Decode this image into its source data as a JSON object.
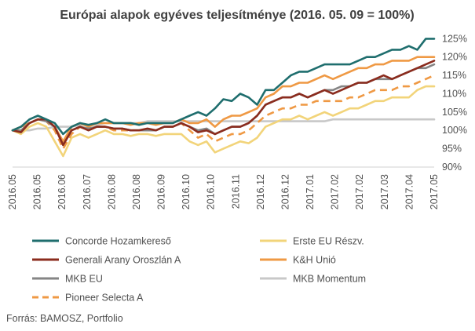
{
  "chart_data": {
    "type": "line",
    "title": "Európai alapok egyéves teljesítménye (2016. 05. 09 = 100%)",
    "source": "Forrás: BAMOSZ, Portfolio",
    "xlabel": "",
    "ylabel": "",
    "ylim": [
      90,
      127
    ],
    "y_ticks": [
      90,
      95,
      100,
      105,
      110,
      115,
      120,
      125
    ],
    "y_tick_labels": [
      "90%",
      "95%",
      "100%",
      "105%",
      "110%",
      "115%",
      "120%",
      "125%"
    ],
    "y_axis_position": "right",
    "x_tick_labels": [
      "2016.05",
      "2016.05",
      "2016.06",
      "2016.07",
      "2016.08",
      "2016.08",
      "2016.09",
      "2016.10",
      "2016.10",
      "2016.11",
      "2016.12",
      "2016.12",
      "2017.01",
      "2017.02",
      "2017.02",
      "2017.03",
      "2017.04",
      "2017.05"
    ],
    "grid": false,
    "legend_position": "bottom",
    "x": [
      0,
      2,
      4,
      6,
      8,
      10,
      12,
      14,
      16,
      18,
      20,
      22,
      24,
      26,
      28,
      30,
      32,
      34,
      36,
      38,
      40,
      42,
      44,
      46,
      48,
      50,
      52,
      54,
      56,
      58,
      60,
      62,
      64,
      66,
      68,
      70,
      72,
      74,
      76,
      78,
      80,
      82,
      84,
      86,
      88,
      90,
      92,
      94,
      96,
      98,
      100
    ],
    "series": [
      {
        "name": "Concorde Hozamkereső",
        "color": "#1f6e6e",
        "dash": false,
        "values": [
          100,
          101,
          103,
          104,
          103,
          102,
          99,
          101,
          102,
          101.5,
          102,
          103,
          102,
          102,
          102,
          101.5,
          102,
          102,
          102,
          102,
          103,
          104,
          105,
          104,
          106,
          108.5,
          108,
          110,
          109,
          107,
          111,
          111,
          113,
          115,
          116,
          116,
          117,
          118,
          118,
          118,
          118,
          119,
          120,
          120,
          121,
          122,
          122,
          123,
          122,
          125,
          125
        ]
      },
      {
        "name": "Erste EU Részv.",
        "color": "#f2d47a",
        "dash": false,
        "values": [
          100,
          99,
          101,
          102,
          101,
          97,
          93,
          98,
          99,
          98,
          99,
          100,
          99,
          99,
          98.5,
          99,
          99,
          98.5,
          99,
          99,
          99,
          97,
          96,
          97,
          94,
          95,
          96,
          97,
          96.5,
          98,
          101,
          102,
          103,
          103,
          104,
          103,
          104,
          105,
          104,
          105,
          106,
          106,
          107,
          108,
          108,
          109,
          109,
          109,
          111,
          112,
          112
        ]
      },
      {
        "name": "Generali Arany Oroszlán A",
        "color": "#8b2c1e",
        "dash": false,
        "values": [
          100,
          99.5,
          102,
          103,
          103,
          101,
          96,
          100,
          101,
          100,
          101,
          101,
          100.5,
          100.5,
          100,
          100,
          100.5,
          100,
          101,
          101,
          102,
          101,
          99.5,
          100,
          99,
          100,
          101,
          101,
          102,
          104,
          107,
          108,
          109,
          109,
          110,
          109,
          110,
          111,
          110,
          111,
          112,
          113,
          113,
          114,
          115,
          114,
          115,
          116,
          117,
          118,
          119
        ]
      },
      {
        "name": "K&H Unió",
        "color": "#ef9944",
        "dash": false,
        "values": [
          100,
          101,
          102,
          103,
          103,
          101,
          97,
          101,
          102,
          101,
          102,
          102,
          102,
          102,
          101.5,
          102,
          102,
          101.5,
          102,
          102,
          103,
          102,
          102,
          103,
          101,
          103,
          104,
          104,
          105,
          106,
          109,
          110,
          112,
          112,
          113,
          113,
          114,
          115,
          114,
          115,
          116,
          117,
          117,
          118,
          118,
          119,
          119,
          119,
          120,
          120,
          120
        ]
      },
      {
        "name": "MKB EU",
        "color": "#858585",
        "dash": false,
        "values": [
          100,
          100,
          102,
          103,
          102.5,
          101,
          96,
          100,
          101,
          100.5,
          101,
          101,
          100.5,
          100.5,
          100,
          100,
          100,
          100,
          101,
          101,
          102,
          101,
          100,
          100.5,
          99,
          100,
          101,
          101,
          102,
          104,
          107,
          108,
          109,
          109,
          110,
          109,
          110,
          111,
          111,
          112,
          112,
          113,
          113,
          114,
          114,
          114,
          115,
          116,
          117,
          117,
          118
        ]
      },
      {
        "name": "MKB Momentum",
        "color": "#c8c8c8",
        "dash": false,
        "values": [
          100,
          100,
          100,
          100.5,
          100.5,
          101,
          101,
          101,
          101.5,
          101.5,
          101.5,
          102,
          102,
          102,
          102,
          102,
          102.5,
          102.5,
          102.5,
          102.5,
          102.5,
          102.5,
          102.5,
          102.5,
          102.5,
          102.5,
          102.5,
          102.5,
          102.5,
          102.5,
          102.5,
          102.5,
          102.5,
          102.5,
          102.5,
          102.5,
          102.5,
          102.5,
          103,
          103,
          103,
          103,
          103,
          103,
          103,
          103,
          103,
          103,
          103,
          103,
          103
        ]
      },
      {
        "name": "Pioneer Selecta A",
        "color": "#ef9944",
        "dash": true,
        "values": [
          100,
          100,
          102,
          103,
          102.5,
          100,
          95,
          99,
          101,
          100,
          101,
          101,
          100,
          100,
          100,
          100,
          100,
          100,
          101,
          101,
          102,
          100,
          98,
          99,
          97,
          98,
          99,
          99,
          100,
          102,
          104,
          105,
          106,
          106,
          107,
          107,
          108,
          108,
          108,
          108,
          109,
          109,
          110,
          111,
          111,
          111,
          112,
          112,
          113,
          114,
          115
        ]
      }
    ]
  },
  "colors": {
    "background": "#ffffff",
    "text": "#404040",
    "axis": "#d0d0d0"
  }
}
